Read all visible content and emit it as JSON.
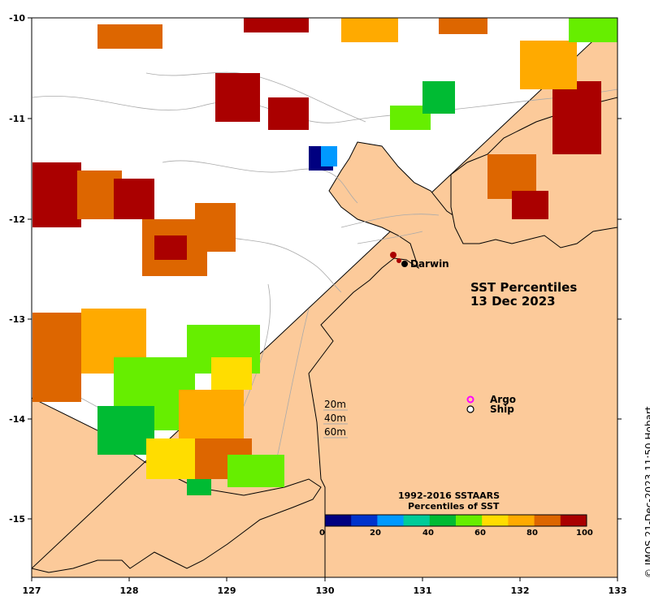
{
  "map": {
    "title_line1": "SST Percentiles",
    "title_line2": "13 Dec 2023",
    "city": "Darwin",
    "depth_contours": [
      "20m",
      "40m",
      "60m"
    ],
    "legend": {
      "argo": "Argo",
      "ship": "Ship",
      "argo_symbol": "o"
    },
    "x_ticks": [
      "127",
      "128",
      "129",
      "130",
      "131",
      "132",
      "133"
    ],
    "y_ticks": [
      "-10",
      "-11",
      "-12",
      "-13",
      "-14",
      "-15"
    ],
    "credit": "© IMOS 21-Dec-2023 11:50 Hobart"
  },
  "colorbar": {
    "title_line1": "1992-2016 SSTAARS",
    "title_line2": "Percentiles of SST",
    "ticks": [
      "0",
      "20",
      "40",
      "60",
      "80",
      "100"
    ],
    "colors": [
      "#000080",
      "#0033cc",
      "#0099ff",
      "#00cc99",
      "#00bb33",
      "#66ee00",
      "#ffdd00",
      "#ffaa00",
      "#dd6600",
      "#aa0000"
    ]
  },
  "colors": {
    "land": "#fcca9a",
    "coast": "#000000",
    "contour": "#aaaaaa",
    "ocean": "#ffffff",
    "argo": "#ff00ff"
  }
}
